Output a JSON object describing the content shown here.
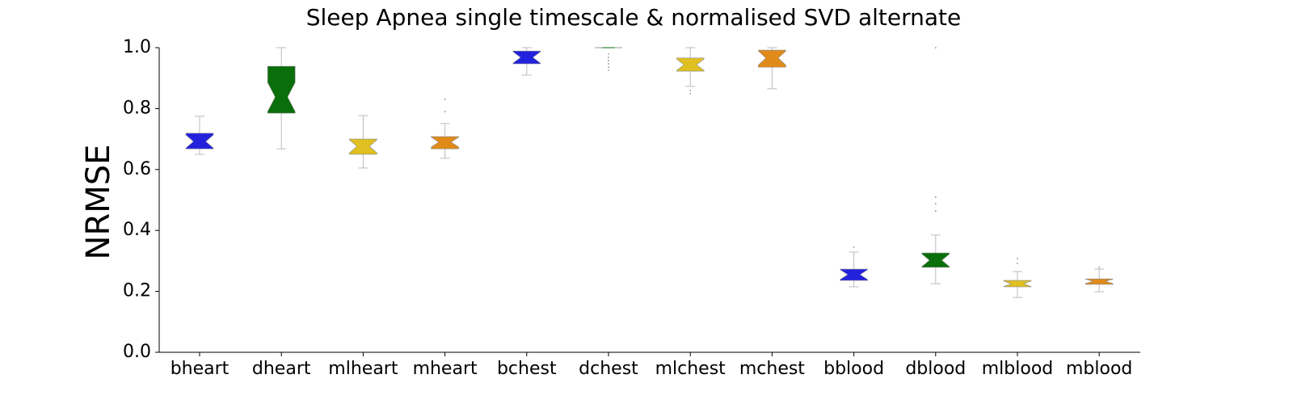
{
  "chart_data": {
    "type": "boxplot",
    "title": "Sleep Apnea single timescale & normalised SVD alternate",
    "y_label": "NRMSE",
    "categories": [
      "bheart",
      "dheart",
      "mlheart",
      "mheart",
      "bchest",
      "dchest",
      "mlchest",
      "mchest",
      "bblood",
      "dblood",
      "mlblood",
      "mblood"
    ],
    "boxes": [
      {
        "color": "#2222dd",
        "whislo": 0.65,
        "q1": 0.668,
        "med": 0.692,
        "q3": 0.719,
        "whishi": 0.775,
        "fliers": []
      },
      {
        "color": "#0a6e0a",
        "whislo": 0.668,
        "q1": 0.785,
        "med": 0.838,
        "q3": 0.939,
        "whishi": 1.0,
        "fliers": []
      },
      {
        "color": "#e0c020",
        "whislo": 0.605,
        "q1": 0.65,
        "med": 0.676,
        "q3": 0.7,
        "whishi": 0.777,
        "fliers": []
      },
      {
        "color": "#e08a1a",
        "whislo": 0.637,
        "q1": 0.668,
        "med": 0.69,
        "q3": 0.708,
        "whishi": 0.751,
        "fliers": [
          0.83,
          0.79
        ]
      },
      {
        "color": "#2222dd",
        "whislo": 0.91,
        "q1": 0.947,
        "med": 0.968,
        "q3": 0.989,
        "whishi": 1.0,
        "fliers": []
      },
      {
        "color": "#0a6e0a",
        "whislo": 1.0,
        "q1": 1.0,
        "med": 1.0,
        "q3": 1.0,
        "whishi": 1.0,
        "fliers": [
          0.979,
          0.968,
          0.958,
          0.947,
          0.936,
          0.926
        ]
      },
      {
        "color": "#e0c020",
        "whislo": 0.873,
        "q1": 0.923,
        "med": 0.944,
        "q3": 0.966,
        "whishi": 1.0,
        "fliers": [
          0.859,
          0.849
        ]
      },
      {
        "color": "#e08a1a",
        "whislo": 0.865,
        "q1": 0.936,
        "med": 0.966,
        "q3": 0.992,
        "whishi": 1.0,
        "fliers": []
      },
      {
        "color": "#2222dd",
        "whislo": 0.215,
        "q1": 0.236,
        "med": 0.255,
        "q3": 0.273,
        "whishi": 0.329,
        "fliers": [
          0.345
        ]
      },
      {
        "color": "#0a6e0a",
        "whislo": 0.225,
        "q1": 0.279,
        "med": 0.302,
        "q3": 0.326,
        "whishi": 0.385,
        "fliers": [
          1.0,
          0.509,
          0.488,
          0.464
        ]
      },
      {
        "color": "#e0c020",
        "whislo": 0.18,
        "q1": 0.215,
        "med": 0.225,
        "q3": 0.236,
        "whishi": 0.265,
        "fliers": [
          0.308,
          0.292
        ]
      },
      {
        "color": "#e08a1a",
        "whislo": 0.199,
        "q1": 0.223,
        "med": 0.233,
        "q3": 0.241,
        "whishi": 0.273,
        "fliers": [
          0.279
        ]
      }
    ],
    "ylim": [
      0,
      1.0
    ],
    "yticks": [
      {
        "value": 0,
        "label": "0.0"
      },
      0.2,
      0.4,
      0.6,
      0.8,
      {
        "value": 1.0,
        "label": "1.0"
      }
    ],
    "grid": false
  }
}
